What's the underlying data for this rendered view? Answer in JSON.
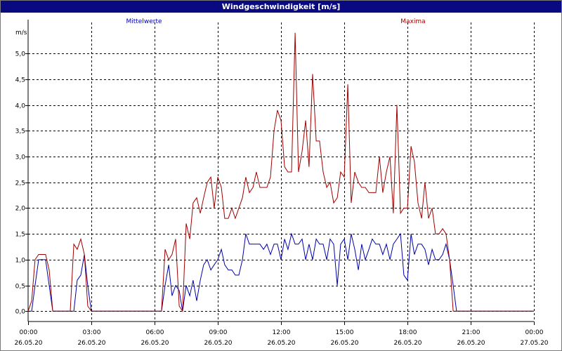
{
  "window": {
    "title": "Windgeschwindigkeit [m/s]"
  },
  "chart_data": {
    "type": "line",
    "title": "Windgeschwindigkeit [m/s]",
    "ylabel": "m/s",
    "xlim": [
      0,
      24
    ],
    "ylim": [
      -0.2,
      5.6
    ],
    "grid": true,
    "y_ticks": [
      "0,0",
      "0,5",
      "1,0",
      "1,5",
      "2,0",
      "2,5",
      "3,0",
      "3,5",
      "4,0",
      "4,5",
      "5,0"
    ],
    "y_tick_values": [
      0,
      0.5,
      1,
      1.5,
      2,
      2.5,
      3,
      3.5,
      4,
      4.5,
      5
    ],
    "x_ticks": [
      {
        "time": "00:00",
        "date": "26.05.20"
      },
      {
        "time": "03:00",
        "date": "26.05.20"
      },
      {
        "time": "06:00",
        "date": "26.05.20"
      },
      {
        "time": "09:00",
        "date": "26.05.20"
      },
      {
        "time": "12:00",
        "date": "26.05.20"
      },
      {
        "time": "15:00",
        "date": "26.05.20"
      },
      {
        "time": "18:00",
        "date": "26.05.20"
      },
      {
        "time": "21:00",
        "date": "26.05.20"
      },
      {
        "time": "00:00",
        "date": "27.05.20"
      }
    ],
    "x_tick_values": [
      0,
      3,
      6,
      9,
      12,
      15,
      18,
      21,
      24
    ],
    "series": [
      {
        "name": "Mittelwerte",
        "color": "#0000aa",
        "x": [
          0,
          0.17,
          0.33,
          0.5,
          0.67,
          0.83,
          1.0,
          1.17,
          1.33,
          1.5,
          2.0,
          2.17,
          2.33,
          2.5,
          2.67,
          2.83,
          3.0,
          3.5,
          6.0,
          6.33,
          6.5,
          6.67,
          6.83,
          7.0,
          7.17,
          7.33,
          7.5,
          7.67,
          7.83,
          8.0,
          8.17,
          8.33,
          8.5,
          8.67,
          8.83,
          9.0,
          9.17,
          9.33,
          9.5,
          9.67,
          9.83,
          10.0,
          10.17,
          10.33,
          10.5,
          10.67,
          10.83,
          11.0,
          11.17,
          11.33,
          11.5,
          11.67,
          11.83,
          12.0,
          12.17,
          12.33,
          12.5,
          12.67,
          12.83,
          13.0,
          13.17,
          13.33,
          13.5,
          13.67,
          13.83,
          14.0,
          14.17,
          14.33,
          14.5,
          14.67,
          14.83,
          15.0,
          15.17,
          15.33,
          15.5,
          15.67,
          15.83,
          16.0,
          16.17,
          16.33,
          16.5,
          16.67,
          16.83,
          17.0,
          17.17,
          17.33,
          17.5,
          17.67,
          17.83,
          18.0,
          18.17,
          18.33,
          18.5,
          18.67,
          18.83,
          19.0,
          19.17,
          19.33,
          19.5,
          19.67,
          19.83,
          20.0,
          20.17,
          20.33,
          20.5,
          20.67,
          20.83,
          21.0,
          21.5,
          24.0
        ],
        "values": [
          0.0,
          0.0,
          0.5,
          1.0,
          1.0,
          1.0,
          0.5,
          0.0,
          0.0,
          0.0,
          0.0,
          0.0,
          0.6,
          0.7,
          1.1,
          0.5,
          0.0,
          0.0,
          0.0,
          0.0,
          0.5,
          0.9,
          0.3,
          0.5,
          0.4,
          0.0,
          0.5,
          0.3,
          0.6,
          0.2,
          0.6,
          0.9,
          1.0,
          0.8,
          0.9,
          1.0,
          1.2,
          0.9,
          0.8,
          0.8,
          0.7,
          0.7,
          1.0,
          1.5,
          1.3,
          1.3,
          1.3,
          1.3,
          1.2,
          1.3,
          1.1,
          1.3,
          1.3,
          1.0,
          1.4,
          1.2,
          1.5,
          1.3,
          1.3,
          1.4,
          1.0,
          1.3,
          1.0,
          1.4,
          1.3,
          1.3,
          1.0,
          1.4,
          1.3,
          0.5,
          1.3,
          1.4,
          1.0,
          1.5,
          1.2,
          0.8,
          1.3,
          1.0,
          1.2,
          1.4,
          1.3,
          1.3,
          1.1,
          1.3,
          1.0,
          1.3,
          1.4,
          1.5,
          0.7,
          0.6,
          1.5,
          1.1,
          1.3,
          1.3,
          1.2,
          0.9,
          1.2,
          1.0,
          1.0,
          1.1,
          1.3,
          1.0,
          0.5,
          0.0,
          0.0,
          0.0,
          0.0,
          0.0,
          0.0,
          0.0
        ]
      },
      {
        "name": "Maxima",
        "color": "#a00000",
        "x": [
          0,
          0.17,
          0.33,
          0.5,
          0.67,
          0.83,
          1.0,
          1.17,
          1.33,
          1.5,
          2.0,
          2.17,
          2.33,
          2.5,
          2.67,
          2.83,
          3.0,
          3.5,
          6.0,
          6.33,
          6.5,
          6.67,
          6.83,
          7.0,
          7.17,
          7.33,
          7.5,
          7.67,
          7.83,
          8.0,
          8.17,
          8.33,
          8.5,
          8.67,
          8.83,
          9.0,
          9.17,
          9.33,
          9.5,
          9.67,
          9.83,
          10.0,
          10.17,
          10.33,
          10.5,
          10.67,
          10.83,
          11.0,
          11.17,
          11.33,
          11.5,
          11.67,
          11.83,
          12.0,
          12.17,
          12.33,
          12.5,
          12.67,
          12.83,
          13.0,
          13.17,
          13.33,
          13.5,
          13.67,
          13.83,
          14.0,
          14.17,
          14.33,
          14.5,
          14.67,
          14.83,
          15.0,
          15.17,
          15.33,
          15.5,
          15.67,
          15.83,
          16.0,
          16.17,
          16.33,
          16.5,
          16.67,
          16.83,
          17.0,
          17.17,
          17.33,
          17.5,
          17.67,
          17.83,
          18.0,
          18.17,
          18.33,
          18.5,
          18.67,
          18.83,
          19.0,
          19.17,
          19.33,
          19.5,
          19.67,
          19.83,
          20.0,
          20.17,
          20.33,
          20.5,
          20.67,
          20.83,
          21.0,
          21.5,
          24.0
        ],
        "values": [
          0.0,
          0.2,
          1.0,
          1.1,
          1.1,
          1.1,
          0.8,
          0.0,
          0.0,
          0.0,
          0.0,
          1.3,
          1.2,
          1.4,
          1.1,
          0.1,
          0.0,
          0.0,
          0.0,
          0.0,
          1.2,
          1.0,
          1.1,
          1.4,
          0.1,
          0.0,
          1.7,
          1.4,
          2.1,
          2.2,
          1.9,
          2.2,
          2.5,
          2.6,
          2.0,
          2.6,
          2.4,
          1.8,
          1.8,
          2.0,
          1.8,
          2.0,
          2.2,
          2.6,
          2.3,
          2.4,
          2.7,
          2.4,
          2.4,
          2.4,
          2.6,
          3.5,
          3.9,
          3.7,
          2.8,
          2.7,
          2.7,
          5.4,
          2.7,
          3.1,
          3.7,
          2.8,
          4.6,
          3.3,
          3.3,
          2.7,
          2.4,
          2.5,
          2.1,
          2.2,
          2.7,
          2.6,
          4.4,
          2.1,
          2.7,
          2.5,
          2.4,
          2.4,
          2.3,
          2.3,
          2.3,
          3.0,
          2.3,
          2.7,
          3.0,
          1.9,
          4.0,
          1.9,
          2.0,
          2.0,
          3.2,
          2.9,
          2.1,
          1.8,
          2.5,
          1.8,
          2.0,
          1.5,
          1.5,
          1.6,
          1.5,
          1.0,
          0.0,
          0.0,
          0.0,
          0.0,
          0.0,
          0.0,
          0.0,
          0.0
        ]
      }
    ]
  }
}
